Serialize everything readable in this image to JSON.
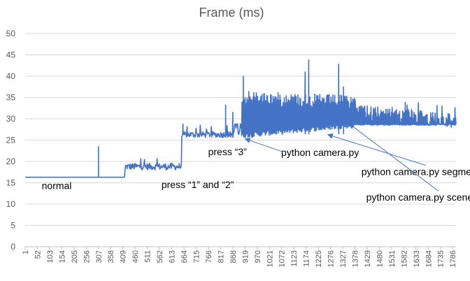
{
  "chart_data": {
    "type": "line",
    "title": "Frame (ms)",
    "xlabel": "",
    "ylabel": "",
    "ylim": [
      0,
      50
    ],
    "y_ticks": [
      "0",
      "5",
      "10",
      "15",
      "20",
      "25",
      "30",
      "35",
      "40",
      "45",
      "50"
    ],
    "xlim": [
      1,
      1800
    ],
    "x_ticks": [
      "1",
      "52",
      "103",
      "154",
      "205",
      "256",
      "307",
      "358",
      "409",
      "460",
      "511",
      "562",
      "613",
      "664",
      "715",
      "766",
      "817",
      "868",
      "919",
      "970",
      "1021",
      "1072",
      "1123",
      "1174",
      "1225",
      "1276",
      "1327",
      "1378",
      "1429",
      "1480",
      "1531",
      "1582",
      "1633",
      "1684",
      "1735",
      "1786"
    ],
    "grid": true,
    "legend": "none",
    "series": [
      {
        "name": "Frame (ms)",
        "color": "#4472c4",
        "segments": [
          {
            "phase": "normal",
            "x": [
              1,
              420
            ],
            "baseline": 16.3,
            "min": 16.0,
            "max": 16.5,
            "spikes": [
              {
                "x": 307,
                "y": 23.5
              }
            ]
          },
          {
            "phase": "press “1” and “2”",
            "x": [
              420,
              655
            ],
            "baseline": 18.8,
            "min": 18.0,
            "max": 20.8
          },
          {
            "phase": "press “3”",
            "x": [
              655,
              905
            ],
            "baseline": 26.3,
            "min": 25.2,
            "max": 28.8,
            "spikes": [
              {
                "x": 660,
                "y": 28.8
              },
              {
                "x": 838,
                "y": 33.2
              },
              {
                "x": 868,
                "y": 31.5
              }
            ]
          },
          {
            "phase": "python camera.py",
            "x": [
              905,
              1380
            ],
            "min": 25.5,
            "max": 36.5,
            "spikes": [
              {
                "x": 912,
                "y": 40.0
              },
              {
                "x": 1185,
                "y": 43.8
              },
              {
                "x": 1170,
                "y": 41.0
              },
              {
                "x": 1310,
                "y": 42.8
              },
              {
                "x": 1330,
                "y": 37.5
              }
            ]
          },
          {
            "phase": "python camera.py segmentation / scene",
            "x": [
              1380,
              1800
            ],
            "baseline": 28.5,
            "min": 28.0,
            "max": 35.0
          }
        ]
      }
    ],
    "annotations": [
      {
        "text": "normal",
        "x": 70,
        "y": 13.5
      },
      {
        "text": "press “1” and “2”",
        "x": 570,
        "y": 13.8
      },
      {
        "text": "press “3”",
        "x": 765,
        "y": 21.5
      },
      {
        "text": "python camera.py",
        "x": 1070,
        "y": 21.3,
        "arrow_to": {
          "x": 920,
          "y": 25.3
        }
      },
      {
        "text": "python camera.py segmentation",
        "x": 1405,
        "y": 16.8,
        "arrow_to": {
          "x": 1265,
          "y": 26.3
        }
      },
      {
        "text": "python camera.py scene",
        "x": 1425,
        "y": 10.8,
        "arrow_to": {
          "x": 1355,
          "y": 28.8
        }
      }
    ]
  }
}
